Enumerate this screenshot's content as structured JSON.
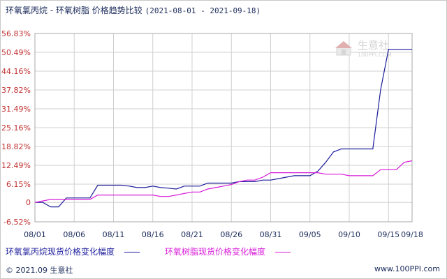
{
  "title": {
    "main": "环氧氯丙烷 - 环氧树脂 价格趋势比较",
    "range": "(2021-08-01 - 2021-09-18)"
  },
  "watermark": {
    "cn": "生意社",
    "url": "100PPI.COM"
  },
  "footer": {
    "left": "© 2021.09 生意社",
    "right": "www.100PPI.com"
  },
  "colors": {
    "series1": "#1c1c9c",
    "series2": "#d81ad8",
    "ytick": "#c03030",
    "xtick": "#1a2a5a",
    "grid": "#d0d0d0"
  },
  "chart_data": {
    "type": "line",
    "title": "环氧氯丙烷 - 环氧树脂 价格趋势比较",
    "xlabel": "",
    "ylabel": "",
    "grid": true,
    "legend_position": "bottom",
    "ylim": [
      -6.52,
      56.83
    ],
    "y_ticks": [
      "56.83%",
      "50.49%",
      "44.16%",
      "37.82%",
      "31.49%",
      "25.16%",
      "18.82%",
      "12.49%",
      "6.15%",
      "0",
      "-6.52%"
    ],
    "y_tick_values": [
      56.83,
      50.49,
      44.16,
      37.82,
      31.49,
      25.16,
      18.82,
      12.49,
      6.15,
      0,
      -6.52
    ],
    "x_ticks": [
      "08/01",
      "08/06",
      "08/11",
      "08/16",
      "08/21",
      "08/26",
      "08/31",
      "09/05",
      "09/10",
      "09/15",
      "09/18"
    ],
    "x_tick_days": [
      0,
      5,
      10,
      15,
      20,
      25,
      30,
      35,
      40,
      45,
      48
    ],
    "series": [
      {
        "name": "环氧氯丙烷现货价格变化幅度",
        "color": "#1c1c9c",
        "points": [
          [
            0,
            0
          ],
          [
            1,
            0
          ],
          [
            2,
            -1.5
          ],
          [
            3,
            -1.5
          ],
          [
            4,
            1.5
          ],
          [
            5,
            1.5
          ],
          [
            6,
            1.5
          ],
          [
            7,
            1.5
          ],
          [
            8,
            5.8
          ],
          [
            9,
            5.8
          ],
          [
            10,
            5.8
          ],
          [
            11,
            5.8
          ],
          [
            12,
            5.5
          ],
          [
            13,
            5
          ],
          [
            14,
            5
          ],
          [
            15,
            5.5
          ],
          [
            16,
            5
          ],
          [
            17,
            4.8
          ],
          [
            18,
            4.5
          ],
          [
            19,
            5.5
          ],
          [
            20,
            5.5
          ],
          [
            21,
            5.5
          ],
          [
            22,
            6.5
          ],
          [
            23,
            6.5
          ],
          [
            24,
            6.5
          ],
          [
            25,
            6.5
          ],
          [
            26,
            7
          ],
          [
            27,
            7
          ],
          [
            28,
            7
          ],
          [
            29,
            7.5
          ],
          [
            30,
            7.5
          ],
          [
            31,
            8
          ],
          [
            32,
            8.5
          ],
          [
            33,
            9
          ],
          [
            34,
            9
          ],
          [
            35,
            9
          ],
          [
            36,
            10.5
          ],
          [
            37,
            13.5
          ],
          [
            38,
            17
          ],
          [
            39,
            18
          ],
          [
            40,
            18
          ],
          [
            41,
            18
          ],
          [
            42,
            18
          ],
          [
            43,
            18
          ],
          [
            44,
            38
          ],
          [
            45,
            51.5
          ],
          [
            46,
            51.5
          ],
          [
            47,
            51.5
          ],
          [
            48,
            51.5
          ]
        ]
      },
      {
        "name": "环氧树脂现货价格变化幅度",
        "color": "#d81ad8",
        "points": [
          [
            0,
            0
          ],
          [
            1,
            0.5
          ],
          [
            2,
            1
          ],
          [
            3,
            1
          ],
          [
            4,
            1
          ],
          [
            5,
            1
          ],
          [
            6,
            1
          ],
          [
            7,
            1
          ],
          [
            8,
            2.5
          ],
          [
            9,
            2.5
          ],
          [
            10,
            2.5
          ],
          [
            11,
            2.5
          ],
          [
            12,
            2.5
          ],
          [
            13,
            2.5
          ],
          [
            14,
            2.5
          ],
          [
            15,
            2.5
          ],
          [
            16,
            2
          ],
          [
            17,
            2
          ],
          [
            18,
            2.5
          ],
          [
            19,
            3
          ],
          [
            20,
            3.5
          ],
          [
            21,
            3.5
          ],
          [
            22,
            4.5
          ],
          [
            23,
            5
          ],
          [
            24,
            5.5
          ],
          [
            25,
            6
          ],
          [
            26,
            7
          ],
          [
            27,
            7.5
          ],
          [
            28,
            7.5
          ],
          [
            29,
            8.5
          ],
          [
            30,
            10
          ],
          [
            31,
            10
          ],
          [
            32,
            10
          ],
          [
            33,
            10
          ],
          [
            34,
            10
          ],
          [
            35,
            10
          ],
          [
            36,
            10
          ],
          [
            37,
            9.5
          ],
          [
            38,
            9.5
          ],
          [
            39,
            9.5
          ],
          [
            40,
            9
          ],
          [
            41,
            9
          ],
          [
            42,
            9
          ],
          [
            43,
            9
          ],
          [
            44,
            11
          ],
          [
            45,
            11
          ],
          [
            46,
            11
          ],
          [
            47,
            13.5
          ],
          [
            48,
            14
          ]
        ]
      }
    ]
  }
}
